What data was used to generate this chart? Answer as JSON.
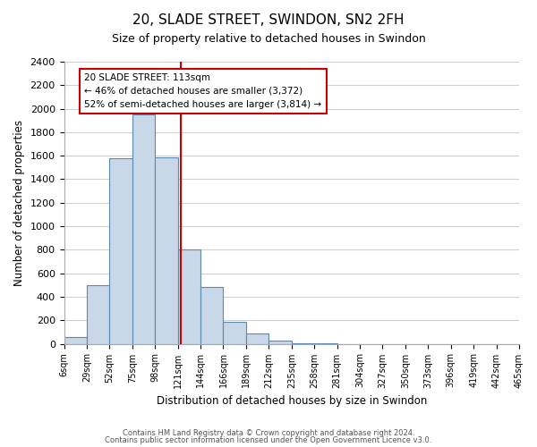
{
  "title": "20, SLADE STREET, SWINDON, SN2 2FH",
  "subtitle": "Size of property relative to detached houses in Swindon",
  "xlabel": "Distribution of detached houses by size in Swindon",
  "ylabel": "Number of detached properties",
  "bar_color": "#c8d8e8",
  "bar_edge_color": "#5a8ab0",
  "tick_labels": [
    "6sqm",
    "29sqm",
    "52sqm",
    "75sqm",
    "98sqm",
    "121sqm",
    "144sqm",
    "166sqm",
    "189sqm",
    "212sqm",
    "235sqm",
    "258sqm",
    "281sqm",
    "304sqm",
    "327sqm",
    "350sqm",
    "373sqm",
    "396sqm",
    "419sqm",
    "442sqm",
    "465sqm"
  ],
  "bar_heights": [
    55,
    500,
    1580,
    1950,
    1590,
    800,
    480,
    185,
    90,
    30,
    5,
    3,
    0,
    0,
    0,
    0,
    0,
    0,
    0,
    0
  ],
  "vline_x": 4.65,
  "vline_color": "#cc0000",
  "annotation_title": "20 SLADE STREET: 113sqm",
  "annotation_line1": "← 46% of detached houses are smaller (3,372)",
  "annotation_line2": "52% of semi-detached houses are larger (3,814) →",
  "annotation_box_color": "#ffffff",
  "annotation_box_edge": "#cc0000",
  "ylim": [
    0,
    2400
  ],
  "yticks": [
    0,
    200,
    400,
    600,
    800,
    1000,
    1200,
    1400,
    1600,
    1800,
    2000,
    2200,
    2400
  ],
  "footer1": "Contains HM Land Registry data © Crown copyright and database right 2024.",
  "footer2": "Contains public sector information licensed under the Open Government Licence v3.0.",
  "bg_color": "#ffffff",
  "grid_color": "#d0d0d0"
}
